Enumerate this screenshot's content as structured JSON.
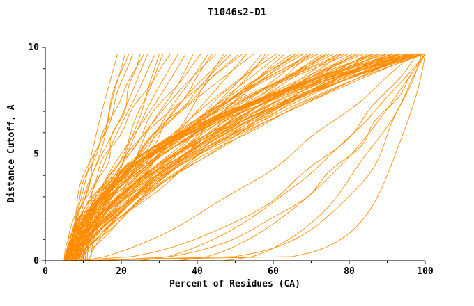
{
  "window": {
    "background": "#ffffff"
  },
  "chart_data": {
    "type": "line",
    "title": "T1046s2-D1",
    "xlabel": "Percent of Residues (CA)",
    "ylabel": "Distance Cutoff, A",
    "xlim": [
      0,
      100
    ],
    "ylim": [
      0,
      10
    ],
    "x_ticks": [
      0,
      20,
      40,
      60,
      80,
      100
    ],
    "y_ticks": [
      0,
      5,
      10
    ],
    "x_minor_step": 10,
    "y_minor_step": 1,
    "grid": false,
    "legend": "none",
    "line_color": "#ff8c00",
    "axis_color": "#000000",
    "y_top_clip": 9.7,
    "series_param_format": [
      "x_percent_at_cutoff0",
      "x_percent_at_top_cutoff",
      "shape_exponent"
    ],
    "series": [
      [
        5,
        19,
        1.0
      ],
      [
        5.5,
        21,
        0.9
      ],
      [
        6,
        23,
        1.2
      ],
      [
        4.5,
        25,
        0.8
      ],
      [
        6.5,
        27,
        1.3
      ],
      [
        5,
        29,
        1.1
      ],
      [
        7,
        31,
        0.9
      ],
      [
        5.5,
        33,
        1.4
      ],
      [
        6,
        35,
        1.0
      ],
      [
        5,
        22,
        1.2
      ],
      [
        6.5,
        30,
        0.7
      ],
      [
        5.5,
        26,
        1.5
      ],
      [
        5,
        37,
        1.1
      ],
      [
        6,
        39,
        0.9
      ],
      [
        7,
        41,
        1.3
      ],
      [
        5.5,
        43,
        1.0
      ],
      [
        8,
        45,
        1.5
      ],
      [
        6.5,
        47,
        0.8
      ],
      [
        5,
        49,
        1.2
      ],
      [
        7.5,
        51,
        1.4
      ],
      [
        6,
        53,
        1.0
      ],
      [
        8.5,
        55,
        1.6
      ],
      [
        5.5,
        57,
        0.9
      ],
      [
        7,
        59,
        1.2
      ],
      [
        6.5,
        61,
        1.5
      ],
      [
        9,
        63,
        1.1
      ],
      [
        5,
        65,
        1.3
      ],
      [
        8,
        44,
        1.0
      ],
      [
        6,
        52,
        1.6
      ],
      [
        7.5,
        58,
        0.85
      ],
      [
        5.5,
        62,
        1.25
      ],
      [
        9,
        48,
        1.4
      ],
      [
        5,
        66,
        1.2
      ],
      [
        6,
        68,
        1.5
      ],
      [
        7,
        70,
        1.0
      ],
      [
        8,
        72,
        1.8
      ],
      [
        5.5,
        74,
        1.3
      ],
      [
        6.5,
        76,
        1.6
      ],
      [
        7.5,
        78,
        1.1
      ],
      [
        9,
        80,
        1.9
      ],
      [
        5,
        82,
        1.4
      ],
      [
        6,
        84,
        1.7
      ],
      [
        7,
        86,
        1.2
      ],
      [
        8.5,
        88,
        2.0
      ],
      [
        5.5,
        67,
        1.5
      ],
      [
        6.5,
        69,
        1.1
      ],
      [
        7.5,
        71,
        1.8
      ],
      [
        9.5,
        73,
        1.3
      ],
      [
        5,
        75,
        1.6
      ],
      [
        6,
        77,
        1.2
      ],
      [
        7,
        79,
        1.9
      ],
      [
        8,
        81,
        1.4
      ],
      [
        5.5,
        83,
        1.7
      ],
      [
        6.5,
        85,
        1.25
      ],
      [
        7.5,
        87,
        1.95
      ],
      [
        9,
        66,
        1.45
      ],
      [
        10,
        70,
        1.75
      ],
      [
        5,
        74,
        1.15
      ],
      [
        6,
        78,
        1.85
      ],
      [
        7,
        82,
        1.35
      ],
      [
        8,
        86,
        1.65
      ],
      [
        9.5,
        88,
        1.5
      ],
      [
        5,
        89,
        1.6
      ],
      [
        6,
        90,
        2.0
      ],
      [
        7,
        91,
        1.4
      ],
      [
        8,
        92,
        2.2
      ],
      [
        9,
        93,
        1.8
      ],
      [
        10,
        94,
        2.4
      ],
      [
        5.5,
        95,
        1.5
      ],
      [
        6.5,
        96,
        2.1
      ],
      [
        7.5,
        97,
        1.7
      ],
      [
        8.5,
        98,
        2.3
      ],
      [
        9.5,
        99,
        1.9
      ],
      [
        10.5,
        100,
        2.5
      ],
      [
        5,
        90,
        1.3
      ],
      [
        6,
        92,
        2.2
      ],
      [
        7,
        94,
        1.6
      ],
      [
        8,
        96,
        2.4
      ],
      [
        9,
        98,
        1.8
      ],
      [
        10,
        100,
        2.6
      ],
      [
        5.5,
        91,
        1.45
      ],
      [
        6.5,
        93,
        2.15
      ],
      [
        7.5,
        95,
        1.75
      ],
      [
        8.5,
        97,
        2.35
      ],
      [
        9.5,
        99,
        1.55
      ],
      [
        11,
        100,
        2.0
      ],
      [
        5,
        94,
        1.9
      ],
      [
        6,
        96,
        1.35
      ],
      [
        7,
        98,
        2.45
      ],
      [
        8,
        100,
        1.65
      ],
      [
        12,
        99,
        2.1
      ],
      [
        11.5,
        97,
        1.5
      ],
      [
        6,
        100,
        0.12
      ],
      [
        8,
        99,
        0.2
      ],
      [
        7,
        98,
        0.45
      ],
      [
        25,
        100,
        0.6
      ],
      [
        35,
        100,
        0.55
      ],
      [
        47,
        100,
        0.5
      ],
      [
        10,
        97,
        0.7
      ],
      [
        15,
        100,
        0.4
      ]
    ]
  }
}
